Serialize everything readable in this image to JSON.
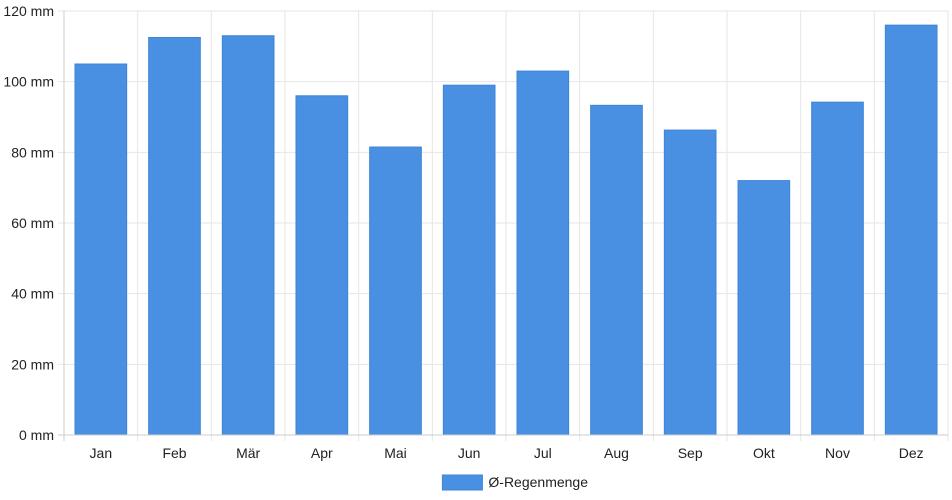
{
  "chart_data": {
    "type": "bar",
    "categories": [
      "Jan",
      "Feb",
      "Mär",
      "Apr",
      "Mai",
      "Jun",
      "Jul",
      "Aug",
      "Sep",
      "Okt",
      "Nov",
      "Dez"
    ],
    "series": [
      {
        "name": "Ø-Regenmenge",
        "values": [
          105,
          112.5,
          113,
          96,
          81.5,
          99,
          103,
          93.3,
          86.3,
          72,
          94.2,
          116
        ],
        "color": "#4a90e2"
      }
    ],
    "title": "",
    "xlabel": "",
    "ylabel": "",
    "ylim": [
      0,
      120
    ],
    "yticks": [
      "0 mm",
      "20 mm",
      "40 mm",
      "60 mm",
      "80 mm",
      "100 mm",
      "120 mm"
    ],
    "ytick_values": [
      0,
      20,
      40,
      60,
      80,
      100,
      120
    ],
    "grid": true,
    "legend_position": "bottom-center",
    "colors": {
      "grid": "#e6e6e6",
      "axis": "#cccccc",
      "bar_edge": "#3f84d6"
    }
  }
}
